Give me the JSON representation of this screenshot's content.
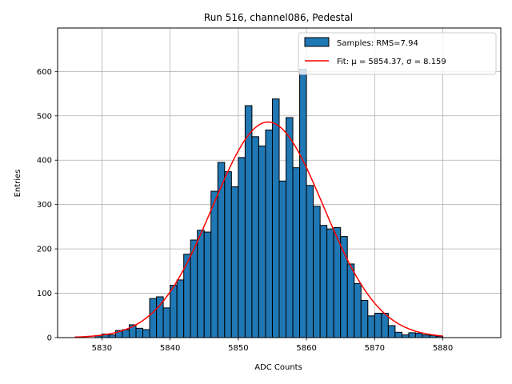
{
  "chart_data": {
    "type": "bar",
    "title": "Run 516, channel086, Pedestal",
    "xlabel": "ADC Counts",
    "ylabel": "Entries",
    "xlim": [
      5823.5,
      5888.5
    ],
    "ylim": [
      0,
      698
    ],
    "xticks": [
      5830,
      5840,
      5850,
      5860,
      5870,
      5880
    ],
    "yticks": [
      0,
      100,
      200,
      300,
      400,
      500,
      600
    ],
    "grid": true,
    "legend_position": "top-right",
    "bin_width": 1,
    "histogram": {
      "name": "Samples: RMS=7.94",
      "color": "#1f77b4",
      "edgecolor": "#000000",
      "bin_left_edges": [
        5829,
        5830,
        5831,
        5832,
        5833,
        5834,
        5835,
        5836,
        5837,
        5838,
        5839,
        5840,
        5841,
        5842,
        5843,
        5844,
        5845,
        5846,
        5847,
        5848,
        5849,
        5850,
        5851,
        5852,
        5853,
        5854,
        5855,
        5856,
        5857,
        5858,
        5859,
        5860,
        5861,
        5862,
        5863,
        5864,
        5865,
        5866,
        5867,
        5868,
        5869,
        5870,
        5871,
        5872,
        5873,
        5874,
        5875,
        5876,
        5877,
        5878,
        5879
      ],
      "counts": [
        4,
        8,
        6,
        16,
        18,
        29,
        21,
        18,
        88,
        92,
        67,
        118,
        130,
        188,
        220,
        242,
        238,
        330,
        395,
        374,
        340,
        406,
        523,
        453,
        432,
        468,
        538,
        353,
        496,
        383,
        605,
        343,
        296,
        253,
        245,
        248,
        228,
        166,
        122,
        84,
        49,
        55,
        55,
        27,
        12,
        6,
        11,
        10,
        6,
        5,
        3
      ]
    },
    "fit": {
      "name": "Fit: μ = 5854.37, σ = 8.159",
      "mu": 5854.37,
      "sigma": 8.159,
      "amplitude": 486,
      "x_range": [
        5826,
        5880
      ],
      "color": "#ff0000"
    }
  }
}
